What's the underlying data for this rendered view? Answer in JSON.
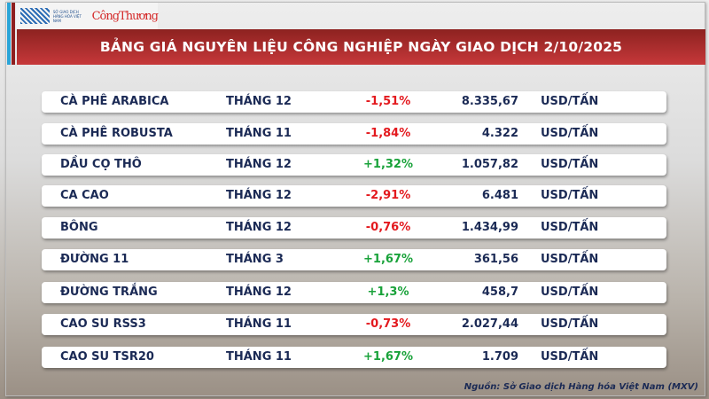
{
  "logo": {
    "exchange": "SỞ GIAO DỊCH HÀNG HÓA VIỆT NAM",
    "brand": "CôngThương"
  },
  "title": "BẢNG GIÁ NGUYÊN LIỆU CÔNG NGHIỆP NGÀY GIAO DỊCH 2/10/2025",
  "colors": {
    "negative": "#e3191e",
    "positive": "#19a23a",
    "header": "#b0302f",
    "text": "#1b2a55"
  },
  "rows": [
    {
      "name": "CÀ PHÊ ARABICA",
      "month": "THÁNG 12",
      "change": "-1,51%",
      "price": "8.335,67",
      "unit": "USD/TẤN"
    },
    {
      "name": "CÀ PHÊ ROBUSTA",
      "month": "THÁNG 11",
      "change": "-1,84%",
      "price": "4.322",
      "unit": "USD/TẤN"
    },
    {
      "name": "DẦU CỌ THÔ",
      "month": "THÁNG 12",
      "change": "+1,32%",
      "price": "1.057,82",
      "unit": "USD/TẤN"
    },
    {
      "name": "CA CAO",
      "month": "THÁNG 12",
      "change": "-2,91%",
      "price": "6.481",
      "unit": "USD/TẤN"
    },
    {
      "name": "BÔNG",
      "month": "THÁNG 12",
      "change": "-0,76%",
      "price": "1.434,99",
      "unit": "USD/TẤN"
    },
    {
      "name": "ĐƯỜNG 11",
      "month": "THÁNG 3",
      "change": "+1,67%",
      "price": "361,56",
      "unit": "USD/TẤN"
    },
    {
      "name": "ĐƯỜNG TRẮNG",
      "month": "THÁNG 12",
      "change": "+1,3%",
      "price": "458,7",
      "unit": "USD/TẤN"
    },
    {
      "name": "CAO SU RSS3",
      "month": "THÁNG 11",
      "change": "-0,73%",
      "price": "2.027,44",
      "unit": "USD/TẤN"
    },
    {
      "name": "CAO SU TSR20",
      "month": "THÁNG 11",
      "change": "+1,67%",
      "price": "1.709",
      "unit": "USD/TẤN"
    }
  ],
  "source": "Nguồn: Sở Giao dịch Hàng hóa Việt Nam (MXV)"
}
